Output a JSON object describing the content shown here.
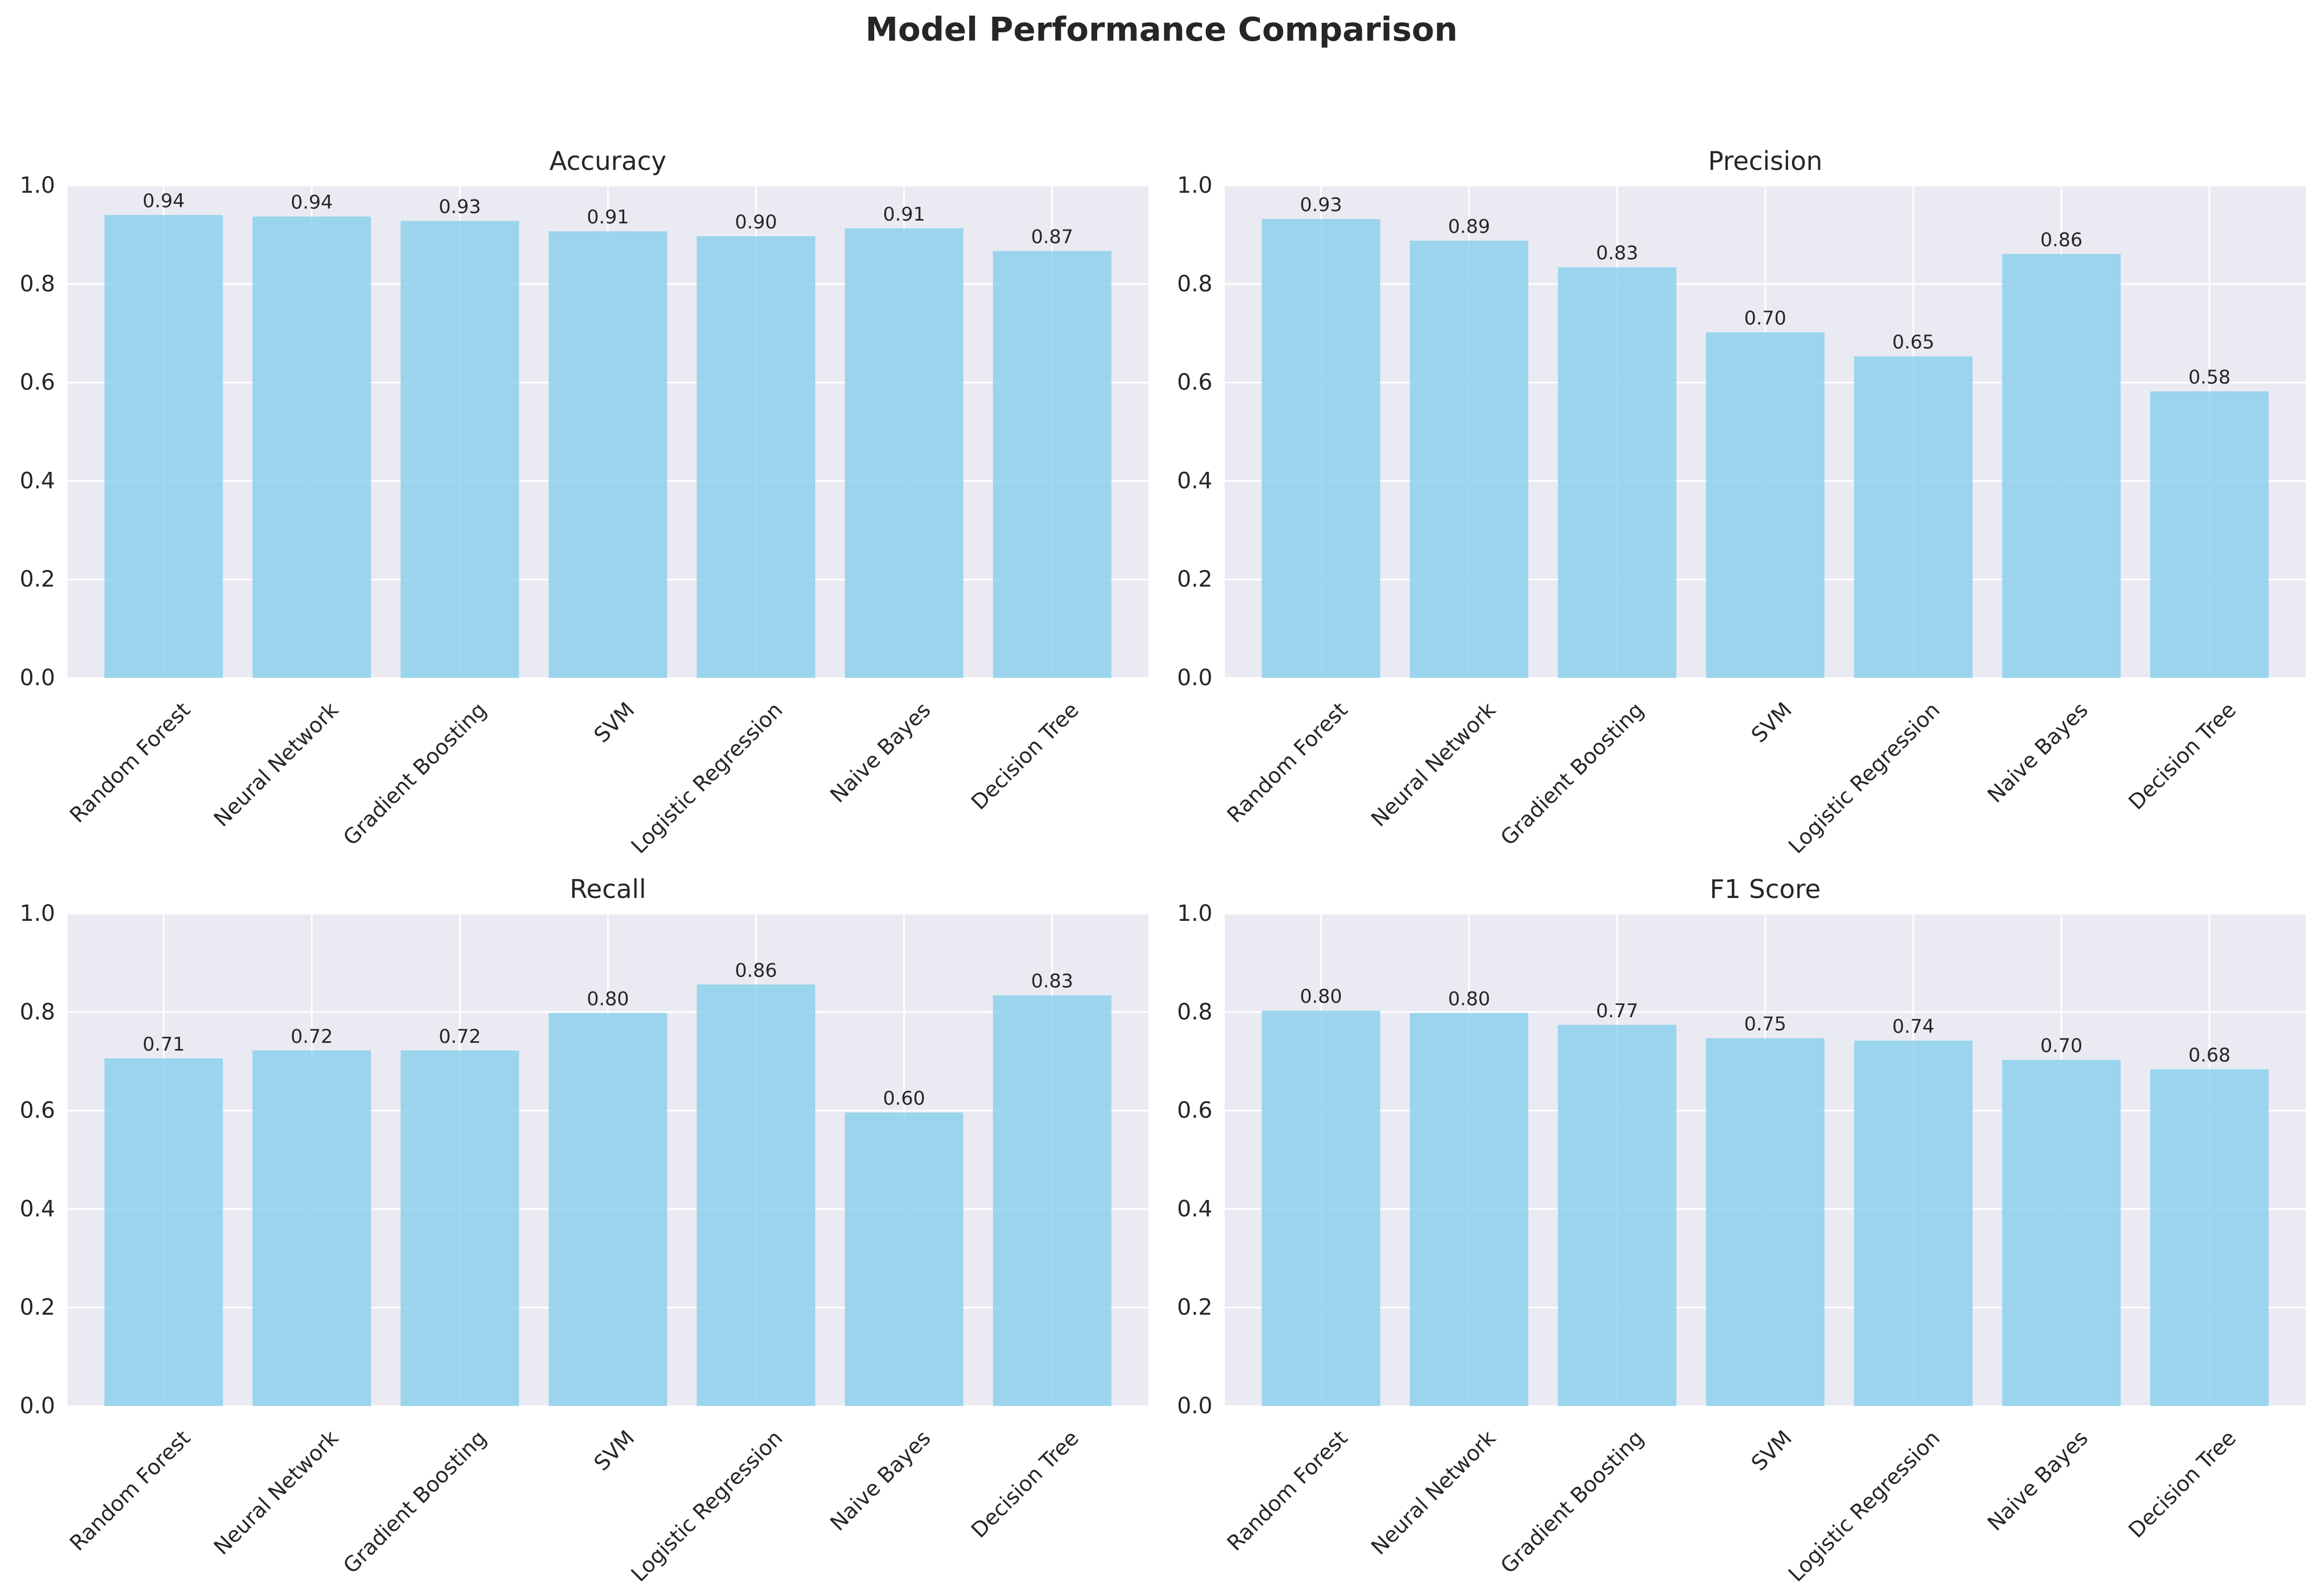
{
  "title": "Model Performance Comparison",
  "chart_data": [
    {
      "type": "bar",
      "title": "Accuracy",
      "categories": [
        "Random Forest",
        "Neural Network",
        "Gradient Boosting",
        "SVM",
        "Logistic Regression",
        "Naive Bayes",
        "Decision Tree"
      ],
      "values": [
        0.94,
        0.937,
        0.928,
        0.907,
        0.897,
        0.913,
        0.867
      ],
      "value_labels": [
        "0.94",
        "0.94",
        "0.93",
        "0.91",
        "0.90",
        "0.91",
        "0.87"
      ],
      "ylim": [
        0,
        1
      ],
      "yticks": [
        "0.0",
        "0.2",
        "0.4",
        "0.6",
        "0.8",
        "1.0"
      ],
      "xlabel": "",
      "ylabel": "",
      "grid": true,
      "bar_color": "#87CEEB"
    },
    {
      "type": "bar",
      "title": "Precision",
      "categories": [
        "Random Forest",
        "Neural Network",
        "Gradient Boosting",
        "SVM",
        "Logistic Regression",
        "Naive Bayes",
        "Decision Tree"
      ],
      "values": [
        0.932,
        0.888,
        0.834,
        0.702,
        0.653,
        0.861,
        0.582
      ],
      "value_labels": [
        "0.93",
        "0.89",
        "0.83",
        "0.70",
        "0.65",
        "0.86",
        "0.58"
      ],
      "ylim": [
        0,
        1
      ],
      "yticks": [
        "0.0",
        "0.2",
        "0.4",
        "0.6",
        "0.8",
        "1.0"
      ],
      "xlabel": "",
      "ylabel": "",
      "grid": true,
      "bar_color": "#87CEEB"
    },
    {
      "type": "bar",
      "title": "Recall",
      "categories": [
        "Random Forest",
        "Neural Network",
        "Gradient Boosting",
        "SVM",
        "Logistic Regression",
        "Naive Bayes",
        "Decision Tree"
      ],
      "values": [
        0.706,
        0.722,
        0.722,
        0.798,
        0.856,
        0.596,
        0.834
      ],
      "value_labels": [
        "0.71",
        "0.72",
        "0.72",
        "0.80",
        "0.86",
        "0.60",
        "0.83"
      ],
      "ylim": [
        0,
        1
      ],
      "yticks": [
        "0.0",
        "0.2",
        "0.4",
        "0.6",
        "0.8",
        "1.0"
      ],
      "xlabel": "",
      "ylabel": "",
      "grid": true,
      "bar_color": "#87CEEB"
    },
    {
      "type": "bar",
      "title": "F1 Score",
      "categories": [
        "Random Forest",
        "Neural Network",
        "Gradient Boosting",
        "SVM",
        "Logistic Regression",
        "Naive Bayes",
        "Decision Tree"
      ],
      "values": [
        0.803,
        0.798,
        0.774,
        0.747,
        0.742,
        0.703,
        0.684
      ],
      "value_labels": [
        "0.80",
        "0.80",
        "0.77",
        "0.75",
        "0.74",
        "0.70",
        "0.68"
      ],
      "ylim": [
        0,
        1
      ],
      "yticks": [
        "0.0",
        "0.2",
        "0.4",
        "0.6",
        "0.8",
        "1.0"
      ],
      "xlabel": "",
      "ylabel": "",
      "grid": true,
      "bar_color": "#87CEEB"
    }
  ]
}
